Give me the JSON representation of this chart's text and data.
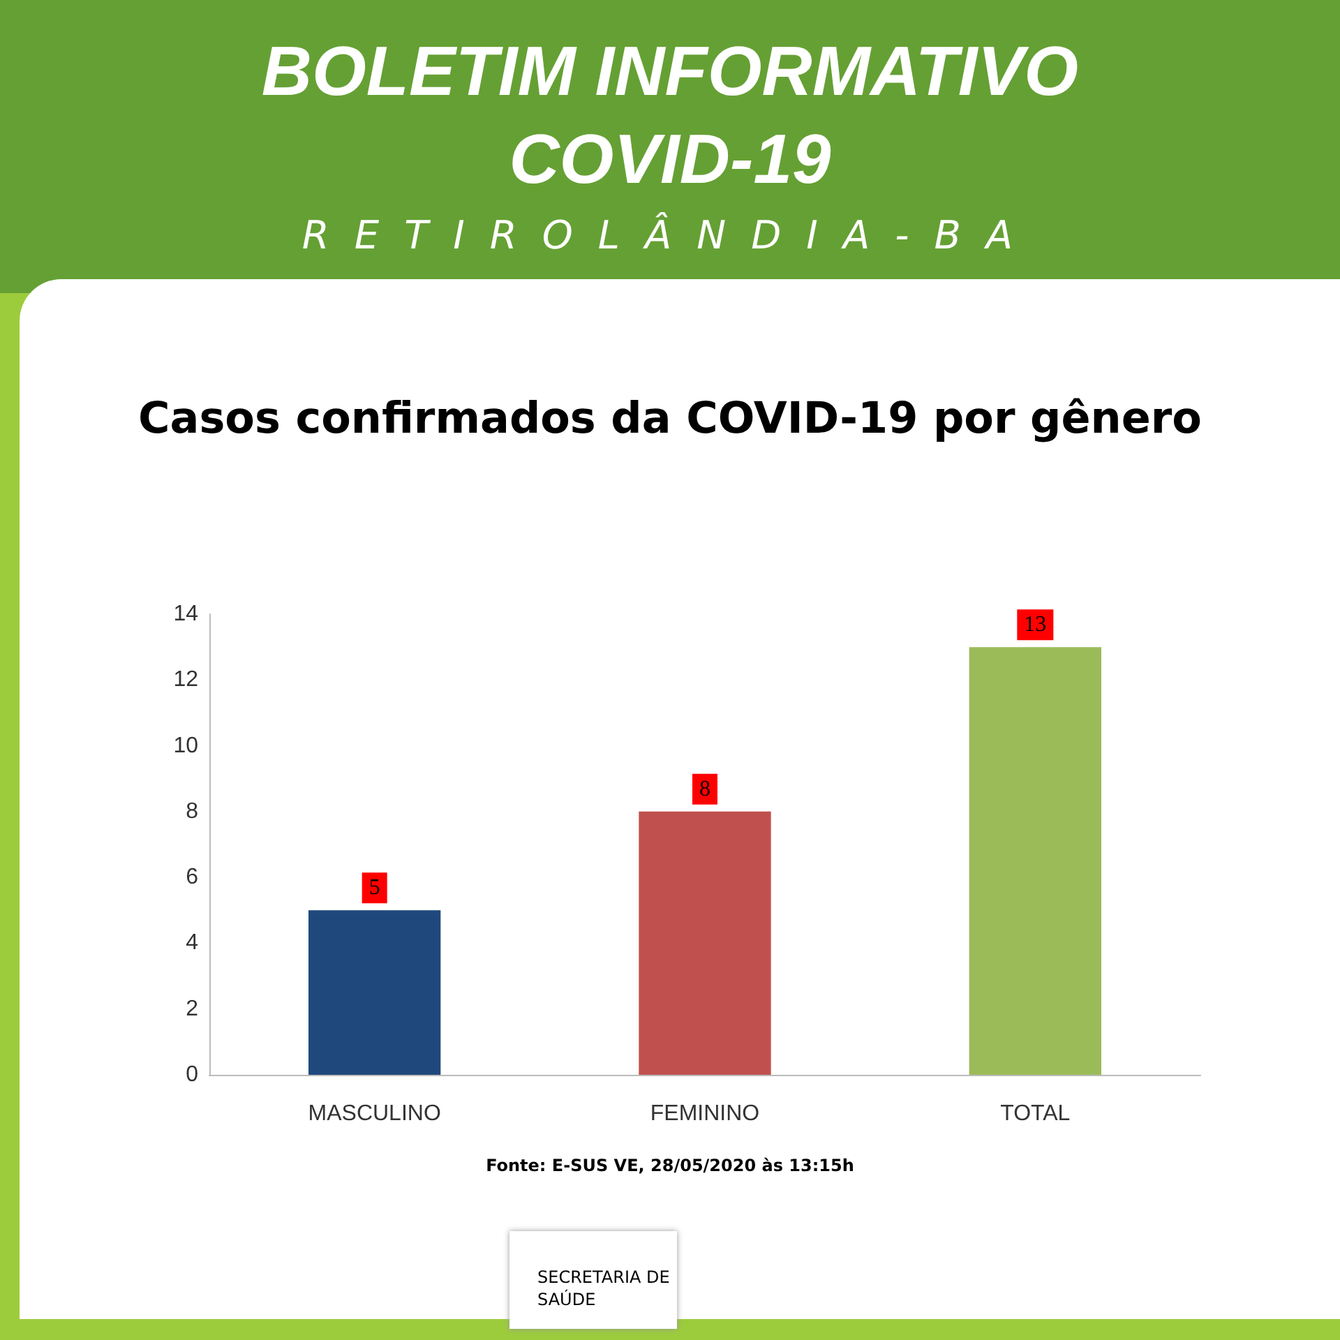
{
  "chart_data": {
    "type": "bar",
    "title": "Casos confirmados da COVID-19 por gênero",
    "annotations": [
      "BOLETIM INFORMATIVO",
      "COVID-19",
      "RETIROLÂNDIA-BA",
      "Fonte:  E-SUS VE, 28/05/2020 às 13:15h",
      "SECRETARIA DE SAÚDE"
    ],
    "categories": [
      "MASCULINO",
      "FEMININO",
      "TOTAL"
    ],
    "values": [
      5,
      8,
      13
    ],
    "colors": [
      "#1f497d",
      "#c0504d",
      "#9bbb59"
    ],
    "ylim": [
      0,
      14
    ],
    "yticks": [
      0,
      2,
      4,
      6,
      8,
      10,
      12,
      14
    ],
    "data_labels": true,
    "grid": false
  }
}
